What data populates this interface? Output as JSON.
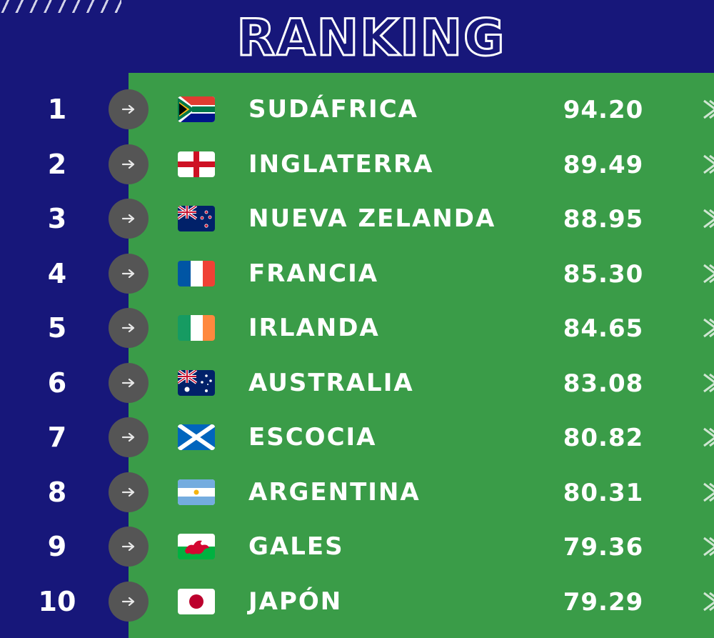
{
  "title": "RANKING",
  "rows": [
    {
      "rank": "1",
      "team": "SUDÁFRICA",
      "points": "94.20",
      "flag": "south-africa-flag"
    },
    {
      "rank": "2",
      "team": "INGLATERRA",
      "points": "89.49",
      "flag": "england-flag"
    },
    {
      "rank": "3",
      "team": "NUEVA ZELANDA",
      "points": "88.95",
      "flag": "new-zealand-flag"
    },
    {
      "rank": "4",
      "team": "FRANCIA",
      "points": "85.30",
      "flag": "france-flag"
    },
    {
      "rank": "5",
      "team": "IRLANDA",
      "points": "84.65",
      "flag": "ireland-flag"
    },
    {
      "rank": "6",
      "team": "AUSTRALIA",
      "points": "83.08",
      "flag": "australia-flag"
    },
    {
      "rank": "7",
      "team": "ESCOCIA",
      "points": "80.82",
      "flag": "scotland-flag"
    },
    {
      "rank": "8",
      "team": "ARGENTINA",
      "points": "80.31",
      "flag": "argentina-flag"
    },
    {
      "rank": "9",
      "team": "GALES",
      "points": "79.36",
      "flag": "wales-flag"
    },
    {
      "rank": "10",
      "team": "JAPÓN",
      "points": "79.29",
      "flag": "japan-flag"
    }
  ],
  "movement_icon": "arrow-right-icon",
  "colors": {
    "background": "#17177a",
    "panel": "#3a9c48",
    "badge": "#555555",
    "text": "#ffffff"
  }
}
